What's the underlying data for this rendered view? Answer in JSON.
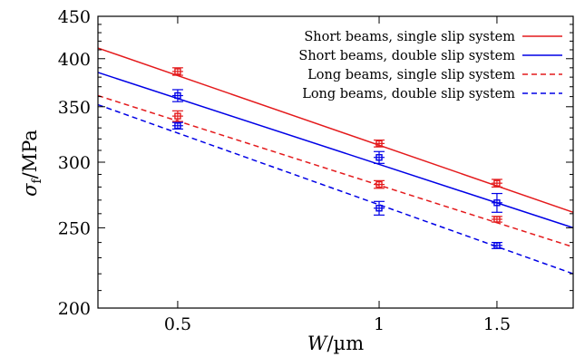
{
  "chart_data": {
    "type": "scatter",
    "xlabel": "W/µm",
    "ylabel": "σf/MPa",
    "x_scale": "log",
    "y_scale": "log",
    "xlim": [
      0.38,
      1.95
    ],
    "ylim": [
      200,
      450
    ],
    "xticks": [
      0.5,
      1,
      1.5
    ],
    "xtick_labels": [
      "0.5",
      "1",
      "1.5"
    ],
    "yticks": [
      200,
      250,
      300,
      350,
      400,
      450
    ],
    "ytick_labels": [
      "200",
      "250",
      "300",
      "350",
      "400",
      "450"
    ],
    "legend_position": "top-right",
    "grid": false,
    "series": [
      {
        "name": "Short beams, single slip system",
        "color": "#e41a1c",
        "line_style": "solid",
        "points": [
          {
            "x": 0.5,
            "y": 386,
            "err": 4
          },
          {
            "x": 1.0,
            "y": 316,
            "err": 3
          },
          {
            "x": 1.5,
            "y": 283,
            "err": 3
          }
        ],
        "fit_line": {
          "x": [
            0.38,
            1.95
          ],
          "y": [
            412,
            261
          ]
        }
      },
      {
        "name": "Short beams, double slip system",
        "color": "#0000e6",
        "line_style": "solid",
        "points": [
          {
            "x": 0.5,
            "y": 361,
            "err": 6
          },
          {
            "x": 1.0,
            "y": 304,
            "err": 5
          },
          {
            "x": 1.5,
            "y": 268,
            "err": 7
          }
        ],
        "fit_line": {
          "x": [
            0.38,
            1.95
          ],
          "y": [
            385,
            250
          ]
        }
      },
      {
        "name": "Long beams, single slip system",
        "color": "#e41a1c",
        "line_style": "dashed",
        "points": [
          {
            "x": 0.5,
            "y": 341,
            "err": 5
          },
          {
            "x": 1.0,
            "y": 282,
            "err": 3
          },
          {
            "x": 1.5,
            "y": 256,
            "err": 2
          }
        ],
        "fit_line": {
          "x": [
            0.38,
            1.95
          ],
          "y": [
            361,
            237
          ]
        }
      },
      {
        "name": "Long beams, double slip system",
        "color": "#0000e6",
        "line_style": "dashed",
        "points": [
          {
            "x": 0.5,
            "y": 332,
            "err": 3
          },
          {
            "x": 1.0,
            "y": 264,
            "err": 5
          },
          {
            "x": 1.5,
            "y": 238,
            "err": 2
          }
        ],
        "fit_line": {
          "x": [
            0.38,
            1.95
          ],
          "y": [
            352,
            220
          ]
        }
      }
    ]
  }
}
